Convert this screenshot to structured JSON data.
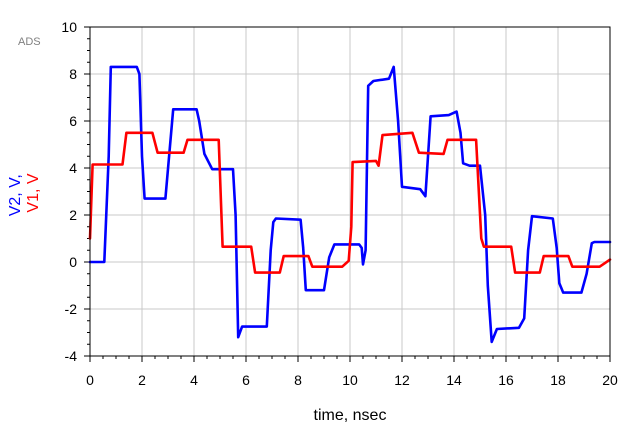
{
  "app_mark": "ADS",
  "chart_data": {
    "type": "line",
    "title": "",
    "xlabel": "time, nsec",
    "ylabel_parts": [
      {
        "text": "V2, V",
        "color": "#0000ff"
      },
      {
        "text": "V1, V",
        "color": "#ff0000"
      }
    ],
    "xlim": [
      0,
      20
    ],
    "ylim": [
      -4,
      10
    ],
    "xticks": [
      0,
      2,
      4,
      6,
      8,
      10,
      12,
      14,
      16,
      18,
      20
    ],
    "yticks": [
      -4,
      -2,
      0,
      2,
      4,
      6,
      8,
      10
    ],
    "grid": true,
    "legend": "none",
    "series": [
      {
        "name": "V2",
        "color": "#0000ff",
        "points": [
          [
            0,
            0
          ],
          [
            0.55,
            0
          ],
          [
            0.72,
            4.5
          ],
          [
            0.8,
            8.3
          ],
          [
            1.8,
            8.3
          ],
          [
            1.9,
            8.0
          ],
          [
            2.0,
            4.5
          ],
          [
            2.1,
            2.7
          ],
          [
            2.9,
            2.7
          ],
          [
            3.05,
            4.6
          ],
          [
            3.2,
            6.5
          ],
          [
            4.1,
            6.5
          ],
          [
            4.2,
            6.0
          ],
          [
            4.4,
            4.6
          ],
          [
            4.7,
            3.95
          ],
          [
            5.5,
            3.95
          ],
          [
            5.6,
            2.0
          ],
          [
            5.7,
            -3.2
          ],
          [
            5.85,
            -2.75
          ],
          [
            6.8,
            -2.75
          ],
          [
            6.95,
            0.5
          ],
          [
            7.05,
            1.7
          ],
          [
            7.15,
            1.85
          ],
          [
            8.1,
            1.8
          ],
          [
            8.2,
            0.6
          ],
          [
            8.3,
            -1.2
          ],
          [
            9.0,
            -1.2
          ],
          [
            9.2,
            0.2
          ],
          [
            9.4,
            0.75
          ],
          [
            10.35,
            0.75
          ],
          [
            10.45,
            0.6
          ],
          [
            10.5,
            -0.1
          ],
          [
            10.6,
            0.5
          ],
          [
            10.7,
            7.5
          ],
          [
            10.9,
            7.7
          ],
          [
            11.5,
            7.8
          ],
          [
            11.68,
            8.3
          ],
          [
            11.85,
            6.0
          ],
          [
            12.0,
            3.2
          ],
          [
            12.7,
            3.1
          ],
          [
            12.9,
            2.8
          ],
          [
            13.0,
            4.5
          ],
          [
            13.1,
            6.2
          ],
          [
            13.8,
            6.25
          ],
          [
            14.1,
            6.4
          ],
          [
            14.25,
            5.5
          ],
          [
            14.35,
            4.2
          ],
          [
            14.6,
            4.1
          ],
          [
            15.0,
            4.1
          ],
          [
            15.2,
            2.0
          ],
          [
            15.3,
            -1.0
          ],
          [
            15.45,
            -3.4
          ],
          [
            15.65,
            -2.85
          ],
          [
            16.5,
            -2.8
          ],
          [
            16.7,
            -2.4
          ],
          [
            16.85,
            0.5
          ],
          [
            17.0,
            1.95
          ],
          [
            17.8,
            1.85
          ],
          [
            17.95,
            0.6
          ],
          [
            18.05,
            -0.9
          ],
          [
            18.2,
            -1.3
          ],
          [
            18.9,
            -1.3
          ],
          [
            19.1,
            -0.5
          ],
          [
            19.3,
            0.8
          ],
          [
            19.4,
            0.85
          ],
          [
            20.0,
            0.85
          ]
        ]
      },
      {
        "name": "V1",
        "color": "#ff0000",
        "points": [
          [
            0,
            1.0
          ],
          [
            0.1,
            4.15
          ],
          [
            1.25,
            4.15
          ],
          [
            1.4,
            5.5
          ],
          [
            2.4,
            5.5
          ],
          [
            2.6,
            4.65
          ],
          [
            3.6,
            4.65
          ],
          [
            3.75,
            5.2
          ],
          [
            4.95,
            5.2
          ],
          [
            5.1,
            0.65
          ],
          [
            6.2,
            0.65
          ],
          [
            6.35,
            -0.45
          ],
          [
            7.3,
            -0.45
          ],
          [
            7.45,
            0.25
          ],
          [
            8.4,
            0.25
          ],
          [
            8.55,
            -0.2
          ],
          [
            9.7,
            -0.2
          ],
          [
            9.95,
            0.05
          ],
          [
            10.05,
            1.5
          ],
          [
            10.1,
            4.25
          ],
          [
            11.0,
            4.3
          ],
          [
            11.1,
            4.1
          ],
          [
            11.25,
            5.4
          ],
          [
            12.4,
            5.5
          ],
          [
            12.65,
            4.65
          ],
          [
            13.6,
            4.6
          ],
          [
            13.75,
            5.2
          ],
          [
            14.85,
            5.2
          ],
          [
            15.05,
            1.0
          ],
          [
            15.15,
            0.65
          ],
          [
            16.2,
            0.65
          ],
          [
            16.35,
            -0.45
          ],
          [
            17.3,
            -0.45
          ],
          [
            17.45,
            0.25
          ],
          [
            18.4,
            0.25
          ],
          [
            18.55,
            -0.2
          ],
          [
            19.6,
            -0.2
          ],
          [
            19.8,
            -0.05
          ],
          [
            20.0,
            0.1
          ]
        ]
      }
    ]
  }
}
